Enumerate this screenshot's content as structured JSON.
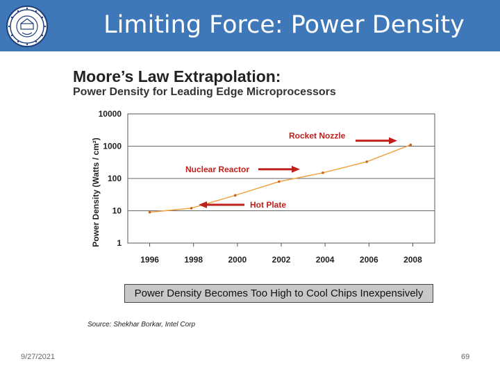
{
  "slide": {
    "title": "Limiting Force: Power Density",
    "footer_date": "9/27/2021",
    "page_number": "69",
    "header_color": "#3f78b8"
  },
  "figure": {
    "title": "Moore’s Law Extrapolation:",
    "subtitle": "Power Density for Leading Edge Microprocessors",
    "caption": "Power Density Becomes Too High to Cool Chips Inexpensively",
    "source": "Source:  Shekhar Borkar, Intel Corp"
  },
  "chart_data": {
    "type": "line",
    "title": "Moore’s Law Extrapolation:",
    "subtitle": "Power Density for Leading Edge Microprocessors",
    "xlabel": "",
    "ylabel": "Power Density (Watts / cm²)",
    "y_scale": "log",
    "ylim": [
      1,
      10000
    ],
    "y_ticks": [
      1,
      10,
      100,
      1000,
      10000
    ],
    "y_tick_labels": [
      "1",
      "10",
      "100",
      "1000",
      "10000"
    ],
    "categories": [
      "1996",
      "1998",
      "2000",
      "2002",
      "2004",
      "2006",
      "2008"
    ],
    "x": [
      1996,
      1997.9,
      1999.9,
      2001.9,
      2003.9,
      2005.9,
      2007.9
    ],
    "values": [
      9,
      12,
      30,
      80,
      150,
      330,
      1100
    ],
    "line_color": "#f0a040",
    "grid": "horizontal",
    "annotations": [
      {
        "label": "Rocket Nozzle",
        "value": 1100,
        "arrow": "right"
      },
      {
        "label": "Nuclear Reactor",
        "value": 150,
        "arrow": "right"
      },
      {
        "label": "Hot Plate",
        "value": 12,
        "arrow": "left"
      }
    ],
    "annotation_color": "#c0201c"
  }
}
